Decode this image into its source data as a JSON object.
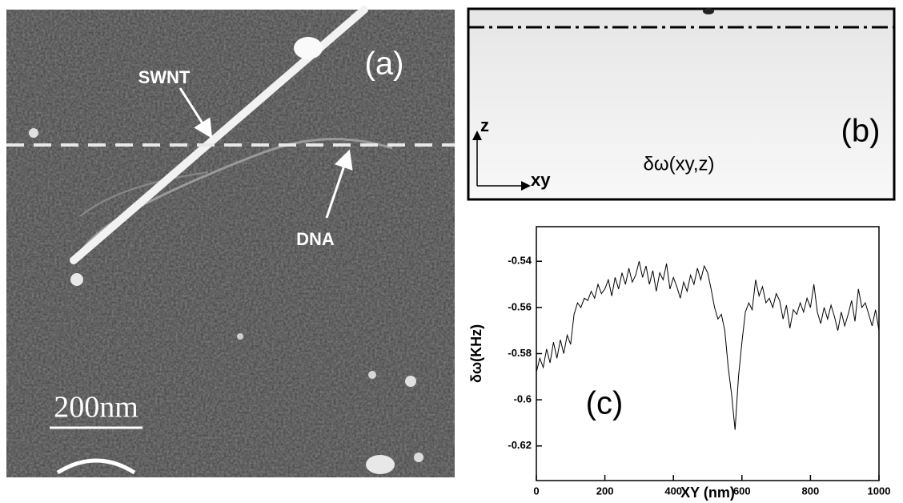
{
  "panel_a": {
    "label": "(a)",
    "swnt": "SWNT",
    "dna": "DNA",
    "scale": "200nm"
  },
  "panel_b": {
    "label": "(b)",
    "z_axis": "z",
    "xy_axis": "xy",
    "quantity": "δω(xy,z)"
  },
  "chart_data": {
    "type": "line",
    "label": "(c)",
    "xlabel": "XY (nm)",
    "ylabel": "δω(KHz)",
    "xlim": [
      0,
      1000
    ],
    "ylim": [
      -0.635,
      -0.525
    ],
    "xticks": [
      0,
      200,
      400,
      600,
      800,
      1000
    ],
    "yticks": [
      -0.62,
      -0.6,
      -0.58,
      -0.56,
      -0.54
    ],
    "color": "#000000",
    "x": [
      0,
      10,
      20,
      30,
      40,
      50,
      60,
      70,
      80,
      90,
      100,
      110,
      120,
      130,
      140,
      150,
      160,
      170,
      180,
      190,
      200,
      210,
      220,
      230,
      240,
      250,
      260,
      270,
      280,
      290,
      300,
      310,
      320,
      330,
      340,
      350,
      360,
      370,
      380,
      390,
      400,
      410,
      420,
      430,
      440,
      450,
      460,
      470,
      480,
      490,
      500,
      510,
      520,
      530,
      540,
      550,
      560,
      570,
      580,
      590,
      600,
      610,
      620,
      630,
      640,
      650,
      660,
      670,
      680,
      690,
      700,
      710,
      720,
      730,
      740,
      750,
      760,
      770,
      780,
      790,
      800,
      810,
      820,
      830,
      840,
      850,
      860,
      870,
      880,
      890,
      900,
      910,
      920,
      930,
      940,
      950,
      960,
      970,
      980,
      990,
      1000
    ],
    "values": [
      -0.588,
      -0.582,
      -0.586,
      -0.578,
      -0.584,
      -0.575,
      -0.582,
      -0.574,
      -0.58,
      -0.572,
      -0.576,
      -0.563,
      -0.558,
      -0.56,
      -0.556,
      -0.557,
      -0.553,
      -0.556,
      -0.55,
      -0.554,
      -0.552,
      -0.548,
      -0.555,
      -0.547,
      -0.552,
      -0.545,
      -0.55,
      -0.543,
      -0.549,
      -0.546,
      -0.54,
      -0.547,
      -0.542,
      -0.55,
      -0.544,
      -0.553,
      -0.545,
      -0.548,
      -0.541,
      -0.552,
      -0.547,
      -0.551,
      -0.556,
      -0.549,
      -0.553,
      -0.546,
      -0.55,
      -0.543,
      -0.548,
      -0.542,
      -0.545,
      -0.552,
      -0.56,
      -0.565,
      -0.563,
      -0.57,
      -0.586,
      -0.598,
      -0.613,
      -0.59,
      -0.575,
      -0.562,
      -0.558,
      -0.561,
      -0.548,
      -0.555,
      -0.551,
      -0.558,
      -0.556,
      -0.56,
      -0.554,
      -0.557,
      -0.565,
      -0.559,
      -0.569,
      -0.561,
      -0.563,
      -0.558,
      -0.562,
      -0.556,
      -0.56,
      -0.55,
      -0.562,
      -0.567,
      -0.56,
      -0.565,
      -0.559,
      -0.564,
      -0.57,
      -0.562,
      -0.568,
      -0.563,
      -0.557,
      -0.566,
      -0.552,
      -0.56,
      -0.558,
      -0.563,
      -0.568,
      -0.561,
      -0.57
    ]
  }
}
